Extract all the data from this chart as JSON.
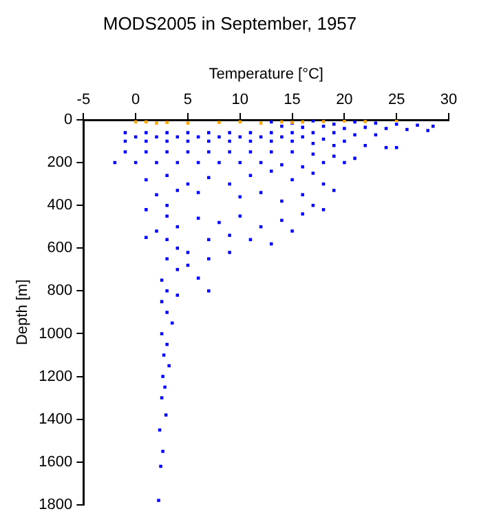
{
  "chart_data": {
    "type": "scatter",
    "title": "MODS2005 in September, 1957",
    "xlabel": "Temperature [°C]",
    "ylabel": "Depth [m]",
    "xlim": [
      -5,
      30
    ],
    "xticks": [
      -5,
      0,
      5,
      10,
      15,
      20,
      25,
      30
    ],
    "ylim": [
      1800,
      0
    ],
    "yticks": [
      0,
      200,
      400,
      600,
      800,
      1000,
      1200,
      1400,
      1600,
      1800
    ],
    "grid": false,
    "legend": false,
    "marker": "square",
    "series": [
      {
        "color": "#0000ff",
        "x": [
          13,
          15,
          17,
          19,
          21,
          23,
          25,
          27,
          28.5,
          14,
          16,
          18,
          20,
          22,
          24,
          26,
          28,
          -1,
          1,
          3,
          5,
          7,
          9,
          11,
          13,
          15,
          17,
          19,
          21,
          23,
          0,
          2,
          4,
          6,
          8,
          10,
          12,
          14,
          16,
          18,
          20,
          -1,
          1,
          3,
          5,
          7,
          9,
          11,
          13,
          15,
          17,
          19,
          22,
          25,
          -1,
          1,
          3,
          5,
          7,
          9,
          11,
          13,
          15,
          17,
          19,
          21,
          24,
          -2,
          0,
          2,
          4,
          6,
          8,
          10,
          12,
          14,
          16,
          18,
          20,
          1,
          3,
          5,
          7,
          9,
          11,
          13,
          15,
          17,
          18,
          16,
          14,
          12,
          10,
          6,
          4,
          2,
          19,
          17,
          3,
          1,
          3,
          4,
          6,
          8,
          10,
          12,
          14,
          16,
          18,
          2,
          3,
          4,
          7,
          9,
          11,
          13,
          15,
          5,
          1,
          3,
          4,
          2.5,
          5,
          7,
          9,
          3,
          6,
          7,
          4,
          2.5,
          3,
          3.5,
          2.5,
          3,
          2.7,
          3.2,
          2.6,
          2.8,
          2.5,
          2.9,
          2.3,
          2.6,
          2.4,
          2.2
        ],
        "values": [
          10,
          15,
          5,
          20,
          10,
          15,
          20,
          25,
          30,
          30,
          35,
          30,
          40,
          35,
          40,
          45,
          50,
          60,
          60,
          60,
          60,
          60,
          60,
          60,
          60,
          60,
          60,
          60,
          70,
          70,
          80,
          80,
          80,
          80,
          80,
          80,
          80,
          80,
          80,
          90,
          100,
          100,
          100,
          100,
          100,
          100,
          100,
          100,
          100,
          100,
          110,
          120,
          120,
          130,
          150,
          150,
          150,
          150,
          150,
          150,
          150,
          150,
          150,
          160,
          170,
          180,
          130,
          200,
          200,
          200,
          200,
          200,
          200,
          200,
          200,
          210,
          220,
          200,
          200,
          280,
          260,
          300,
          270,
          300,
          260,
          240,
          280,
          250,
          300,
          350,
          380,
          340,
          360,
          340,
          330,
          350,
          330,
          400,
          400,
          420,
          450,
          500,
          460,
          480,
          450,
          500,
          470,
          440,
          420,
          520,
          560,
          600,
          560,
          540,
          560,
          580,
          520,
          620,
          550,
          650,
          700,
          750,
          680,
          650,
          620,
          800,
          740,
          800,
          820,
          850,
          900,
          950,
          1000,
          1050,
          1100,
          1150,
          1200,
          1250,
          1300,
          1380,
          1450,
          1550,
          1620,
          1780
        ]
      },
      {
        "color": "#ffa500",
        "x": [
          0,
          2,
          3,
          5,
          8,
          10,
          12,
          14,
          16,
          18,
          20,
          22,
          25,
          15,
          1
        ],
        "values": [
          10,
          15,
          12,
          15,
          12,
          10,
          15,
          10,
          10,
          8,
          5,
          8,
          2,
          12,
          10
        ]
      }
    ]
  }
}
